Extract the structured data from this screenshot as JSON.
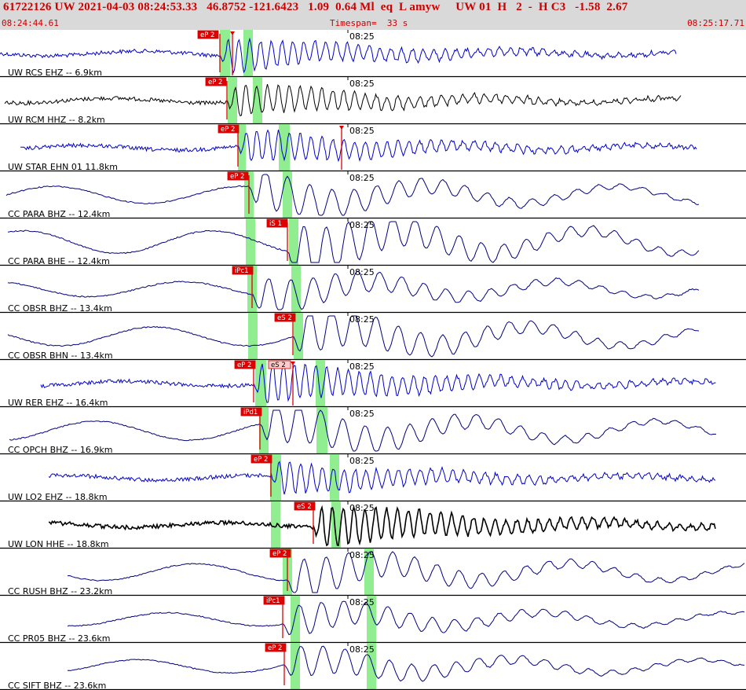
{
  "header": {
    "event_info": "61722126 UW 2021-04-03 08:24:53.33   46.8752 -121.6423   1.09  0.64 Ml  eq  L amyw     UW 01  H   2  -  H C3   -1.58  2.67",
    "start_time": "08:24:44.61",
    "timespan": "Timespan=  33 s",
    "end_time": "08:25:17.71"
  },
  "time_axis": {
    "minute_label": "08:25"
  },
  "colors": {
    "header_bg": "#d9d9d9",
    "header_text": "#cc0000",
    "vhf_trace": "#0000cc",
    "bb_trace": "#000080",
    "hi_trace": "#000000",
    "pick": "#dd0000",
    "window": "#90ee90"
  },
  "traces": [
    {
      "label": "UW RCS EHZ -- 6.9km",
      "color": "vhf_trace",
      "picks": [
        "eP 2"
      ],
      "tag": ""
    },
    {
      "label": "UW RCM HHZ -- 8.2km",
      "color": "hi_trace",
      "picks": [
        "eP 2"
      ],
      "tag": ""
    },
    {
      "label": "UW STAR EHN 01 11.8km",
      "color": "vhf_trace",
      "picks": [
        "eP 2"
      ],
      "tag": ""
    },
    {
      "label": "CC PARA BHZ -- 12.4km",
      "color": "bb_trace",
      "picks": [
        "eP 2"
      ],
      "tag": ""
    },
    {
      "label": "CC PARA BHE -- 12.4km",
      "color": "bb_trace",
      "picks": [
        "iS 1"
      ],
      "tag": ""
    },
    {
      "label": "CC OBSR BHZ -- 13.4km",
      "color": "bb_trace",
      "picks": [
        "iPc1"
      ],
      "tag": ""
    },
    {
      "label": "CC OBSR BHN -- 13.4km",
      "color": "bb_trace",
      "picks": [
        "eS 2"
      ],
      "tag": ""
    },
    {
      "label": "UW RER EHZ -- 16.4km",
      "color": "vhf_trace",
      "picks": [
        "eP 2",
        "eS 2"
      ],
      "tag": ""
    },
    {
      "label": "CC OPCH BHZ -- 16.9km",
      "color": "bb_trace",
      "picks": [
        "iPd1"
      ],
      "tag": ""
    },
    {
      "label": "UW LO2 EHZ -- 18.8km",
      "color": "vhf_trace",
      "picks": [
        "eP 2"
      ],
      "tag": ""
    },
    {
      "label": "UW LON HHE -- 18.8km",
      "color": "hi_trace",
      "picks": [
        "eS 2"
      ],
      "tag": ""
    },
    {
      "label": "CC RUSH BHZ -- 23.2km",
      "color": "bb_trace",
      "picks": [
        "eP 2"
      ],
      "tag": ""
    },
    {
      "label": "CC PR05 BHZ -- 23.6km",
      "color": "bb_trace",
      "picks": [
        "iPc1"
      ],
      "tag": ""
    },
    {
      "label": "CC SIFT BHZ -- 23.6km",
      "color": "bb_trace",
      "picks": [
        "eP 2"
      ],
      "tag": ""
    }
  ]
}
